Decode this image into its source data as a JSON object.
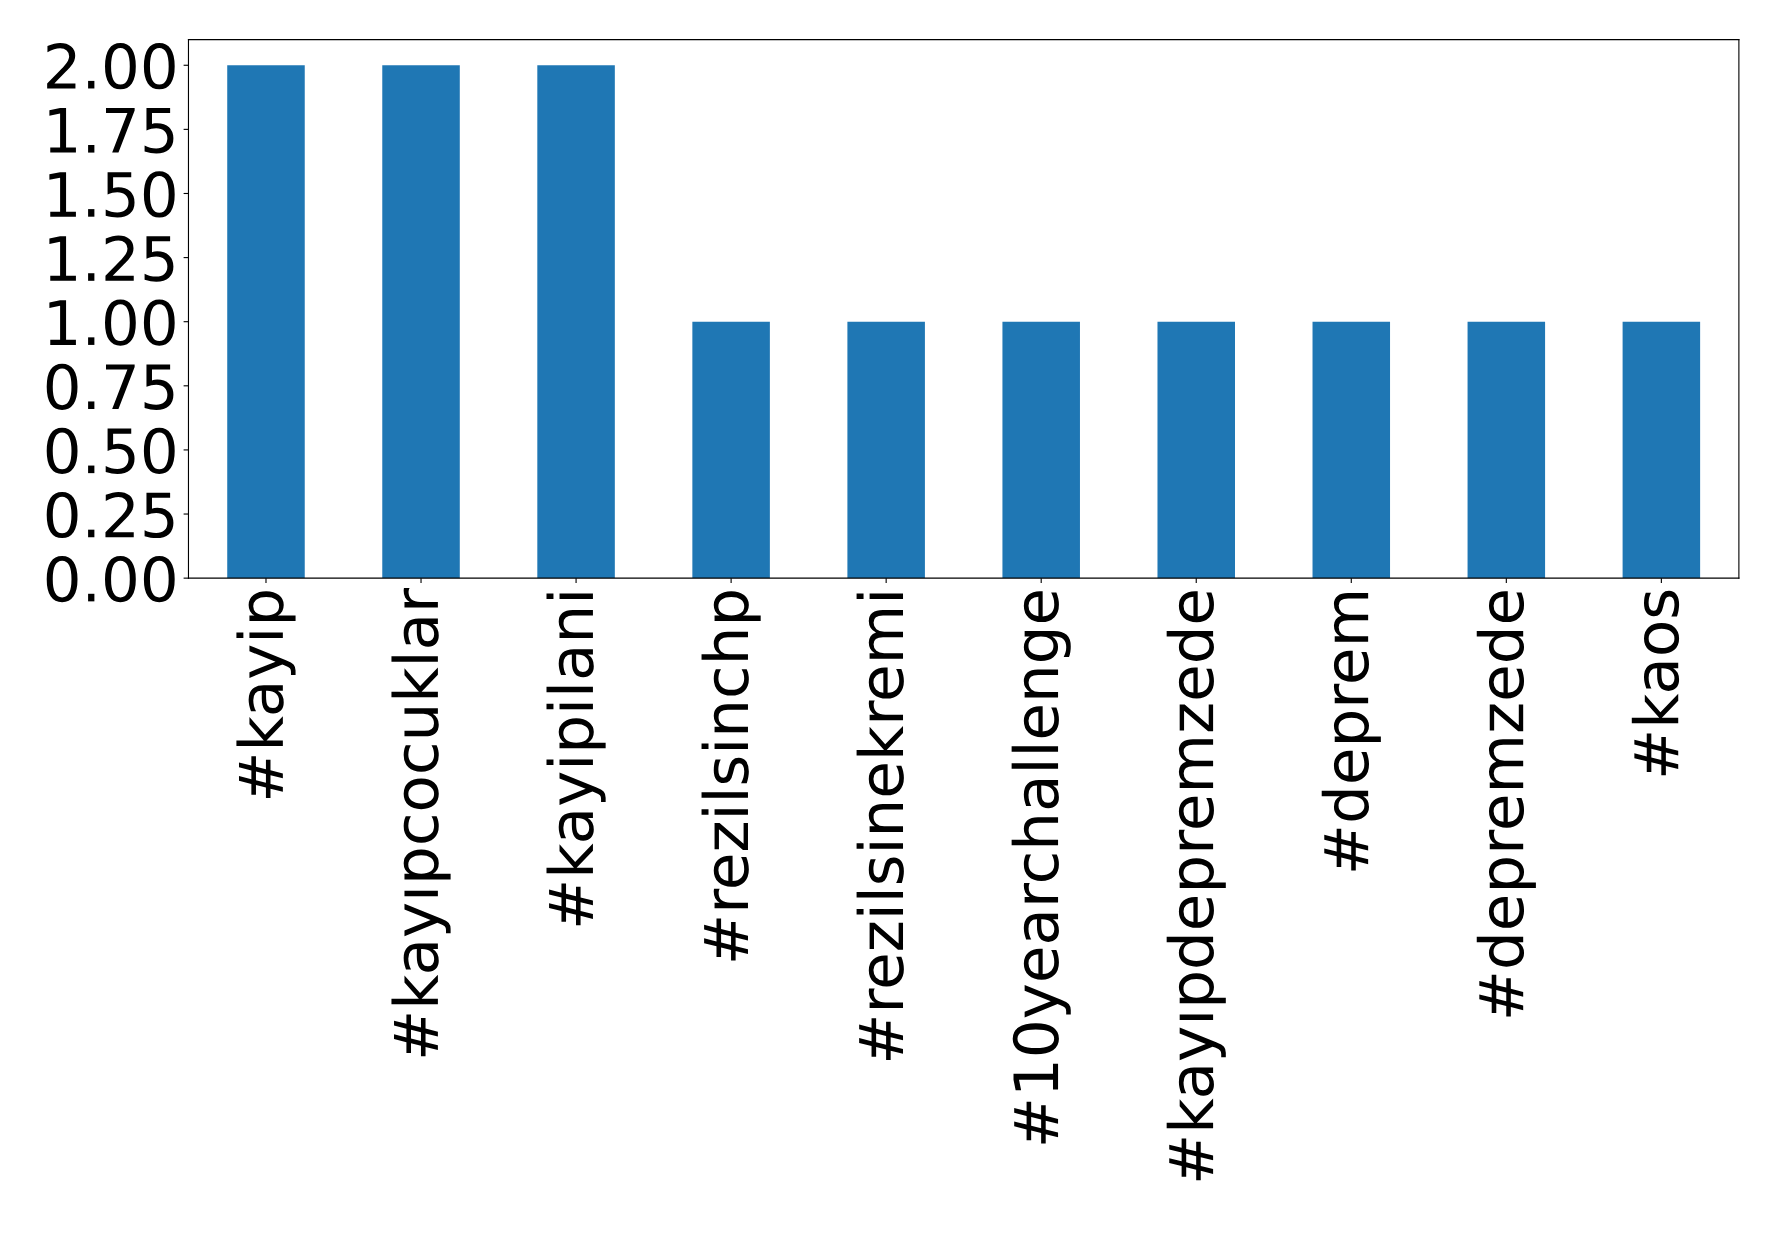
{
  "chart_data": {
    "type": "bar",
    "categories": [
      "#kayip",
      "#kayıpcocuklar",
      "#kayipilani",
      "#rezilsinchp",
      "#rezilsinekremi",
      "#10yearchallenge",
      "#kayıpdepremzede",
      "#deprem",
      "#depremzede",
      "#kaos"
    ],
    "values": [
      2,
      2,
      2,
      1,
      1,
      1,
      1,
      1,
      1,
      1
    ],
    "color": "#1f77b4",
    "ylim": [
      0,
      2.1
    ],
    "yticks": [
      {
        "value": 0,
        "label": "0.00"
      },
      {
        "value": 0.25,
        "label": "0.25"
      },
      {
        "value": 0.5,
        "label": "0.50"
      },
      {
        "value": 0.75,
        "label": "0.75"
      },
      {
        "value": 1,
        "label": "1.00"
      },
      {
        "value": 1.25,
        "label": "1.25"
      },
      {
        "value": 1.5,
        "label": "1.50"
      },
      {
        "value": 1.75,
        "label": "1.75"
      },
      {
        "value": 2,
        "label": "2.00"
      }
    ],
    "grid": false,
    "legend": false
  }
}
